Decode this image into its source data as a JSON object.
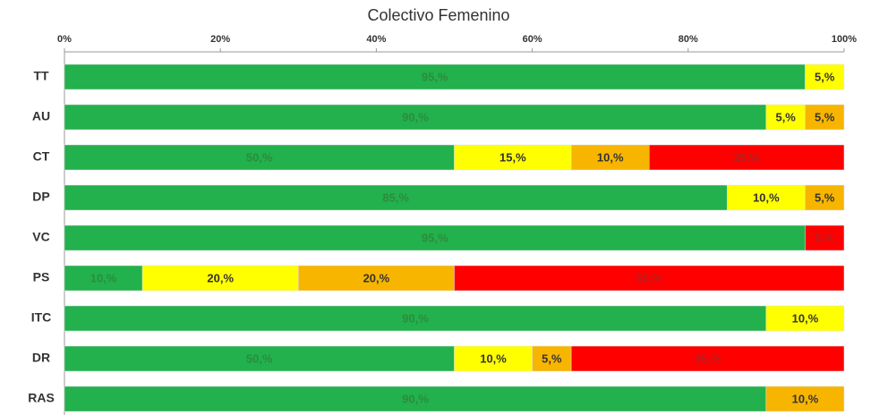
{
  "chart_data": {
    "type": "stacked_bar_horizontal",
    "title": "Colectivo Femenino",
    "categories": [
      "TT",
      "AU",
      "CT",
      "DP",
      "VC",
      "PS",
      "ITC",
      "DR",
      "RAS"
    ],
    "series": [
      {
        "color": "#22b14c",
        "label_color": "#2e8b3e",
        "values": [
          95,
          90,
          50,
          85,
          95,
          10,
          90,
          50,
          90
        ],
        "value_labels": [
          "95,%",
          "90,%",
          "50,%",
          "85,%",
          "95,%",
          "10,%",
          "90,%",
          "50,%",
          "90,%"
        ]
      },
      {
        "color": "#ffff00",
        "label_color": "#333333",
        "values": [
          5,
          5,
          15,
          10,
          0,
          20,
          10,
          10,
          0
        ],
        "value_labels": [
          "5,%",
          "5,%",
          "15,%",
          "10,%",
          null,
          "20,%",
          "10,%",
          "10,%",
          null
        ]
      },
      {
        "color": "#f7b500",
        "label_color": "#333333",
        "values": [
          0,
          5,
          10,
          5,
          0,
          20,
          0,
          5,
          10
        ],
        "value_labels": [
          null,
          "5,%",
          "10,%",
          "5,%",
          null,
          "20,%",
          null,
          "5,%",
          "10,%"
        ]
      },
      {
        "color": "#ff0000",
        "label_color": "#b22222",
        "values": [
          0,
          0,
          25,
          0,
          5,
          50,
          0,
          35,
          0
        ],
        "value_labels": [
          null,
          null,
          "25,%",
          null,
          "5,%",
          "50,%",
          null,
          "35,%",
          null
        ]
      }
    ],
    "xlim": [
      0,
      100
    ],
    "xticks": [
      {
        "value": 0,
        "label": "0%"
      },
      {
        "value": 20,
        "label": "20%"
      },
      {
        "value": 40,
        "label": "40%"
      },
      {
        "value": 60,
        "label": "60%"
      },
      {
        "value": 80,
        "label": "80%"
      },
      {
        "value": 100,
        "label": "100%"
      }
    ]
  }
}
